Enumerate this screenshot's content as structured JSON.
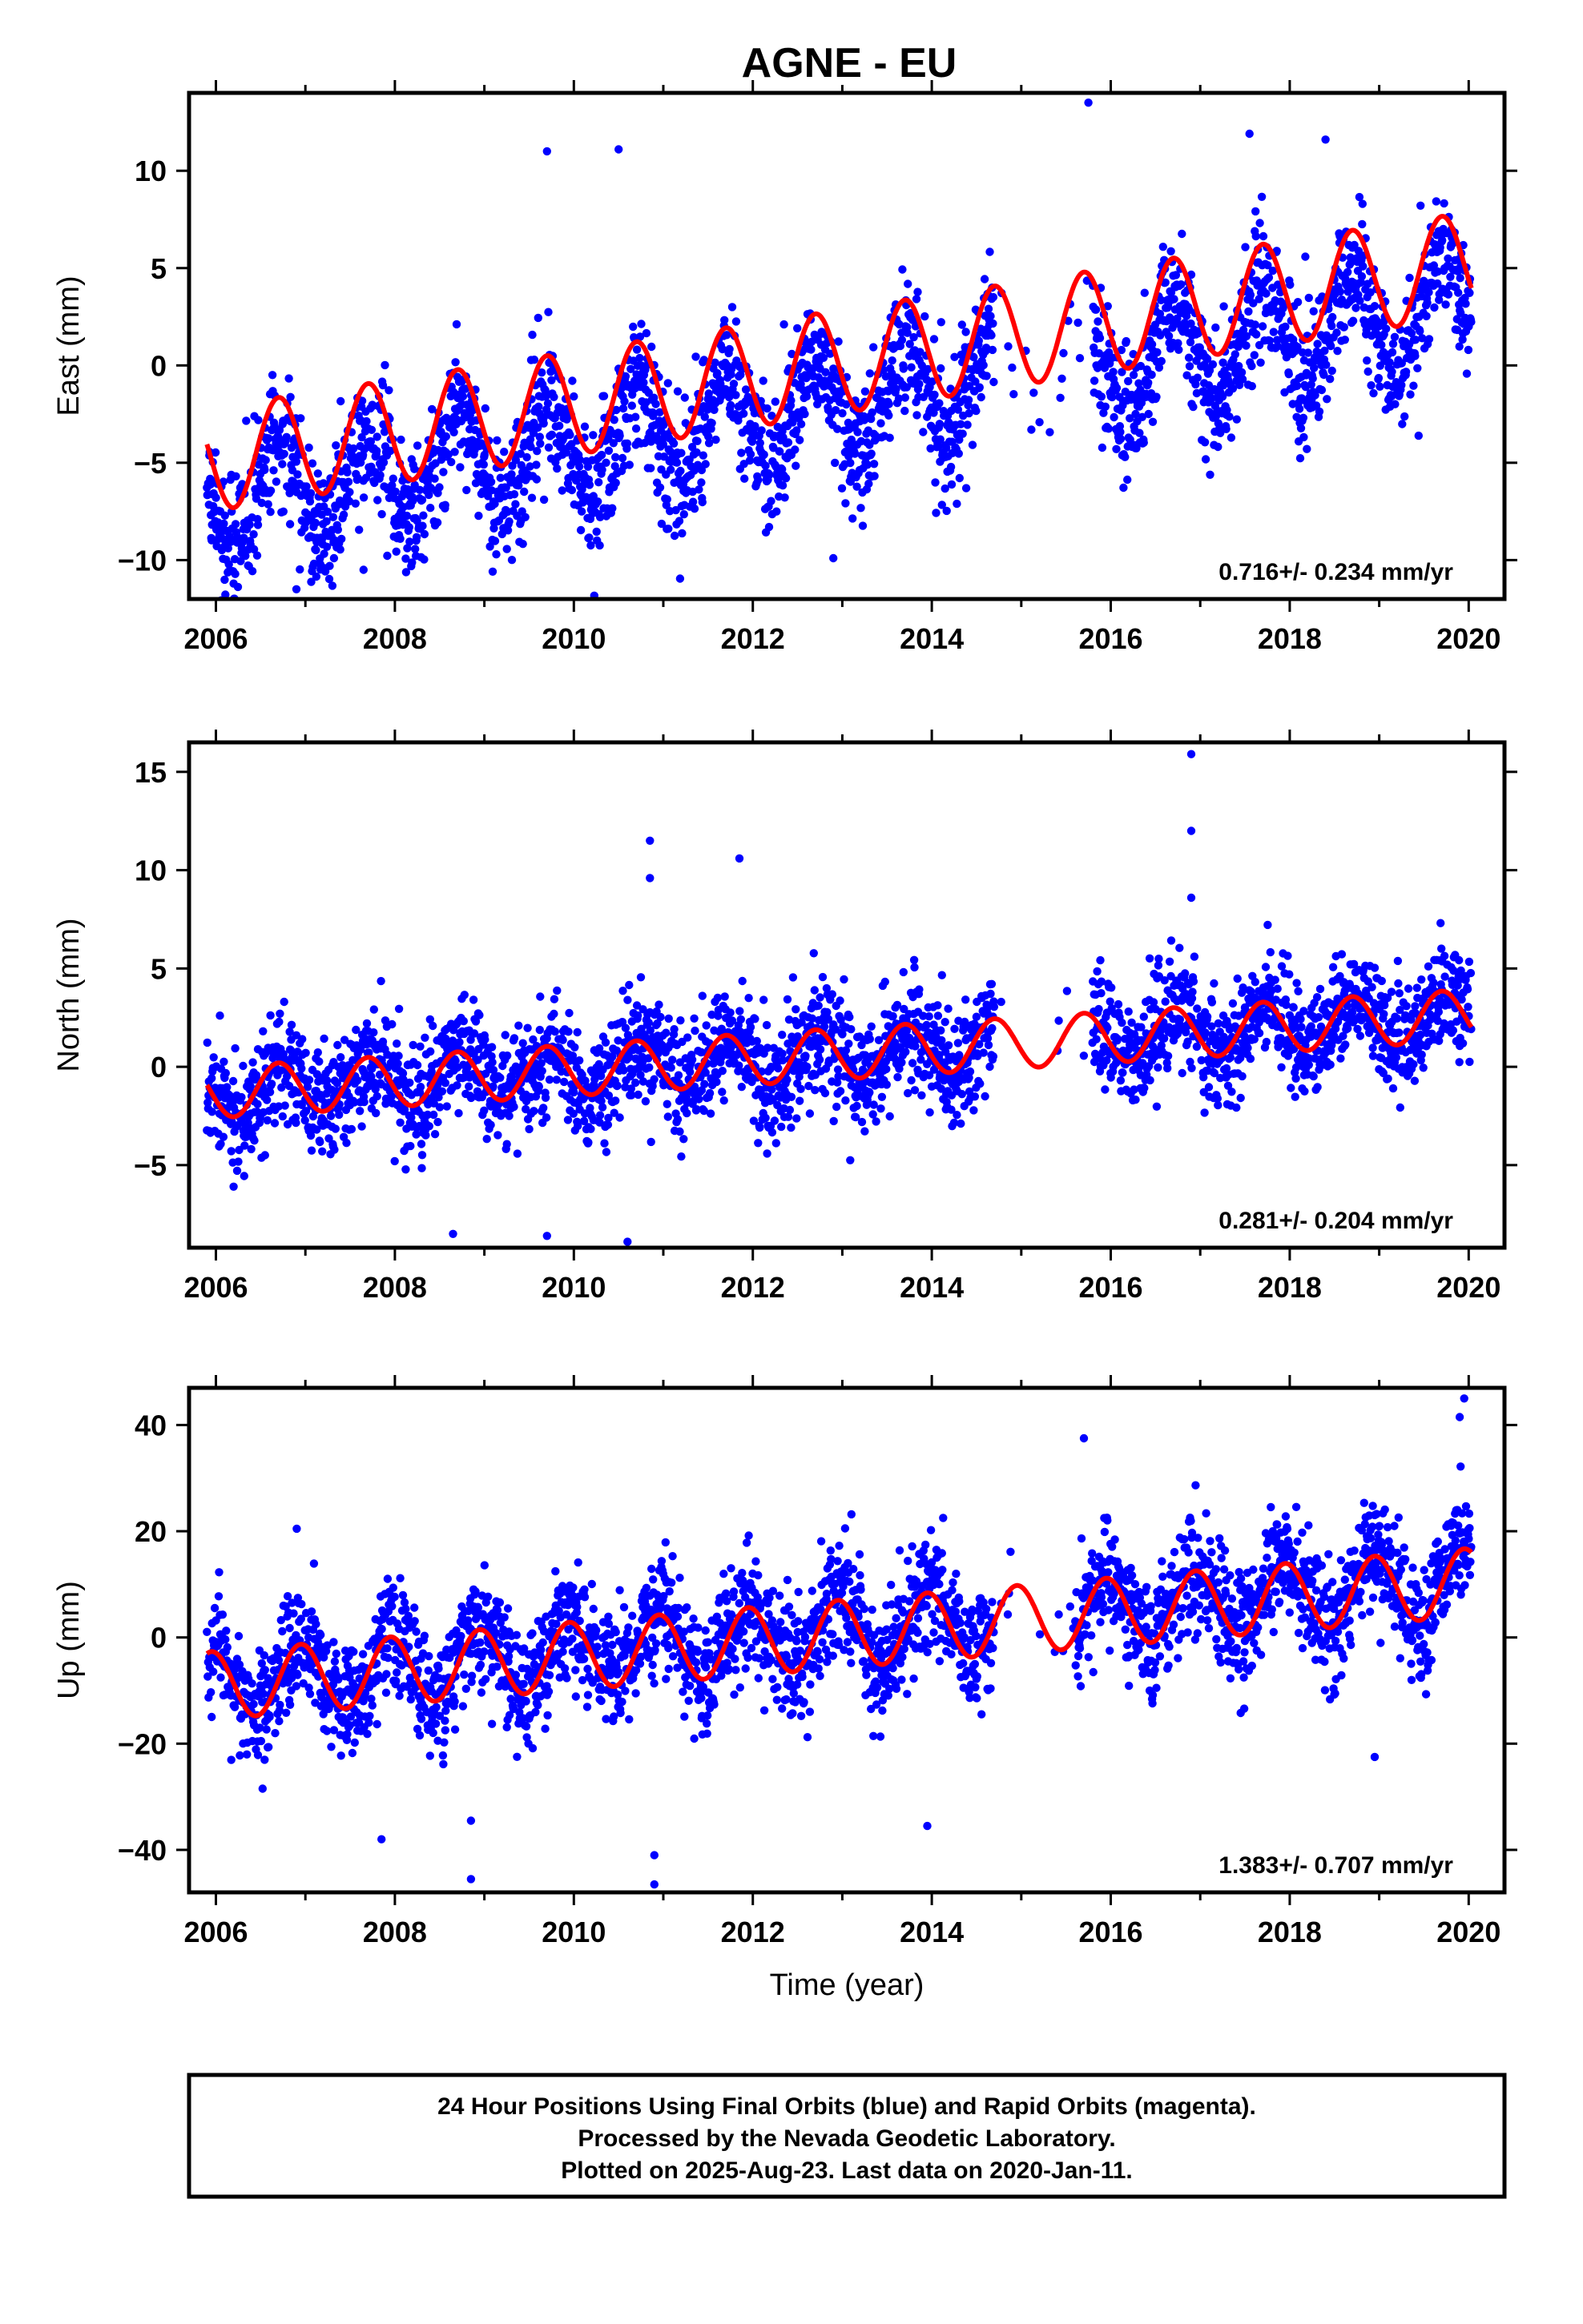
{
  "title": "AGNE - EU",
  "footer": {
    "lines": [
      "24 Hour Positions Using Final Orbits (blue) and Rapid Orbits (magenta).",
      "Processed by the Nevada Geodetic Laboratory.",
      "Plotted on 2025-Aug-23. Last data on 2020-Jan-11."
    ]
  },
  "colors": {
    "points": "#0000ff",
    "model": "#ff0000",
    "frame": "#000000",
    "background": "#ffffff"
  },
  "chart_data": [
    {
      "type": "scatter",
      "ylabel": "East (mm)",
      "xlabel": "",
      "xlim": [
        2005.7,
        2020.4
      ],
      "ylim": [
        -12,
        14
      ],
      "xticks": [
        2006,
        2008,
        2010,
        2012,
        2014,
        2016,
        2018,
        2020
      ],
      "yticks": [
        -10,
        -5,
        0,
        5,
        10
      ],
      "rate_label": "0.716+/- 0.234 mm/yr",
      "data_gap": [
        2014.7,
        2015.8
      ],
      "series": [
        {
          "role": "daily positions",
          "approx": true,
          "start": 2005.9,
          "end": 2020.03,
          "offset": -7.0,
          "trend": 0.716,
          "amp": 2.6,
          "phase": 2006.45,
          "noise": 1.7,
          "outliers": [
            [
              2015.75,
              13.5
            ],
            [
              2009.7,
              11.0
            ],
            [
              2010.5,
              11.1
            ],
            [
              2017.55,
              11.9
            ],
            [
              2018.4,
              11.6
            ],
            [
              2006.9,
              -11.5
            ],
            [
              2012.9,
              -9.9
            ],
            [
              2007.65,
              -10.5
            ]
          ]
        },
        {
          "role": "model fit",
          "approx": true,
          "start": 2005.9,
          "end": 2020.03,
          "offset": -4.8,
          "trend": 0.716,
          "amp": 2.65,
          "phase": 2006.45,
          "drift": 0.0
        }
      ]
    },
    {
      "type": "scatter",
      "ylabel": "North (mm)",
      "xlabel": "",
      "xlim": [
        2005.7,
        2020.4
      ],
      "ylim": [
        -9.2,
        16.5
      ],
      "xticks": [
        2006,
        2008,
        2010,
        2012,
        2014,
        2016,
        2018,
        2020
      ],
      "yticks": [
        -5,
        0,
        5,
        10,
        15
      ],
      "rate_label": "0.281+/- 0.204 mm/yr",
      "data_gap": [
        2014.7,
        2015.8
      ],
      "series": [
        {
          "role": "daily positions",
          "approx": true,
          "start": 2005.9,
          "end": 2020.03,
          "offset": -1.4,
          "trend": 0.281,
          "amp": 1.2,
          "phase": 2006.5,
          "noise": 1.4,
          "outliers": [
            [
              2016.9,
              15.9
            ],
            [
              2016.9,
              12.0
            ],
            [
              2010.85,
              11.5
            ],
            [
              2010.85,
              9.6
            ],
            [
              2011.85,
              10.6
            ],
            [
              2016.9,
              8.6
            ],
            [
              2010.6,
              -8.9
            ],
            [
              2009.7,
              -8.6
            ],
            [
              2008.65,
              -8.5
            ]
          ]
        },
        {
          "role": "model fit",
          "approx": true,
          "start": 2005.9,
          "end": 2020.03,
          "offset": -1.3,
          "trend": 0.281,
          "amp": 1.3,
          "phase": 2006.45,
          "drift": 0.0
        }
      ]
    },
    {
      "type": "scatter",
      "ylabel": "Up (mm)",
      "xlabel": "Time (year)",
      "xlim": [
        2005.7,
        2020.4
      ],
      "ylim": [
        -48,
        47
      ],
      "xticks": [
        2006,
        2008,
        2010,
        2012,
        2014,
        2016,
        2018,
        2020
      ],
      "yticks": [
        -40,
        -20,
        0,
        20,
        40
      ],
      "rate_label": "1.383+/- 0.707 mm/yr",
      "data_gap": [
        2014.7,
        2015.6
      ],
      "series": [
        {
          "role": "daily positions",
          "approx": true,
          "start": 2005.9,
          "end": 2020.03,
          "offset": -8.5,
          "trend": 1.383,
          "amp": 6.5,
          "phase": 2006.7,
          "noise": 5.5,
          "outliers": [
            [
              2019.95,
              45.0
            ],
            [
              2019.9,
              41.5
            ],
            [
              2015.7,
              37.5
            ],
            [
              2010.9,
              -46.5
            ],
            [
              2008.85,
              -45.5
            ],
            [
              2010.9,
              -41.0
            ],
            [
              2007.85,
              -38.0
            ],
            [
              2013.95,
              -35.5
            ],
            [
              2008.85,
              -34.5
            ],
            [
              2018.95,
              -22.5
            ]
          ]
        },
        {
          "role": "model fit",
          "approx": true,
          "start": 2005.9,
          "end": 2020.03,
          "offset": -9.0,
          "trend": 1.383,
          "amp": 6.4,
          "phase": 2006.7,
          "drift": 0.0
        }
      ]
    }
  ]
}
